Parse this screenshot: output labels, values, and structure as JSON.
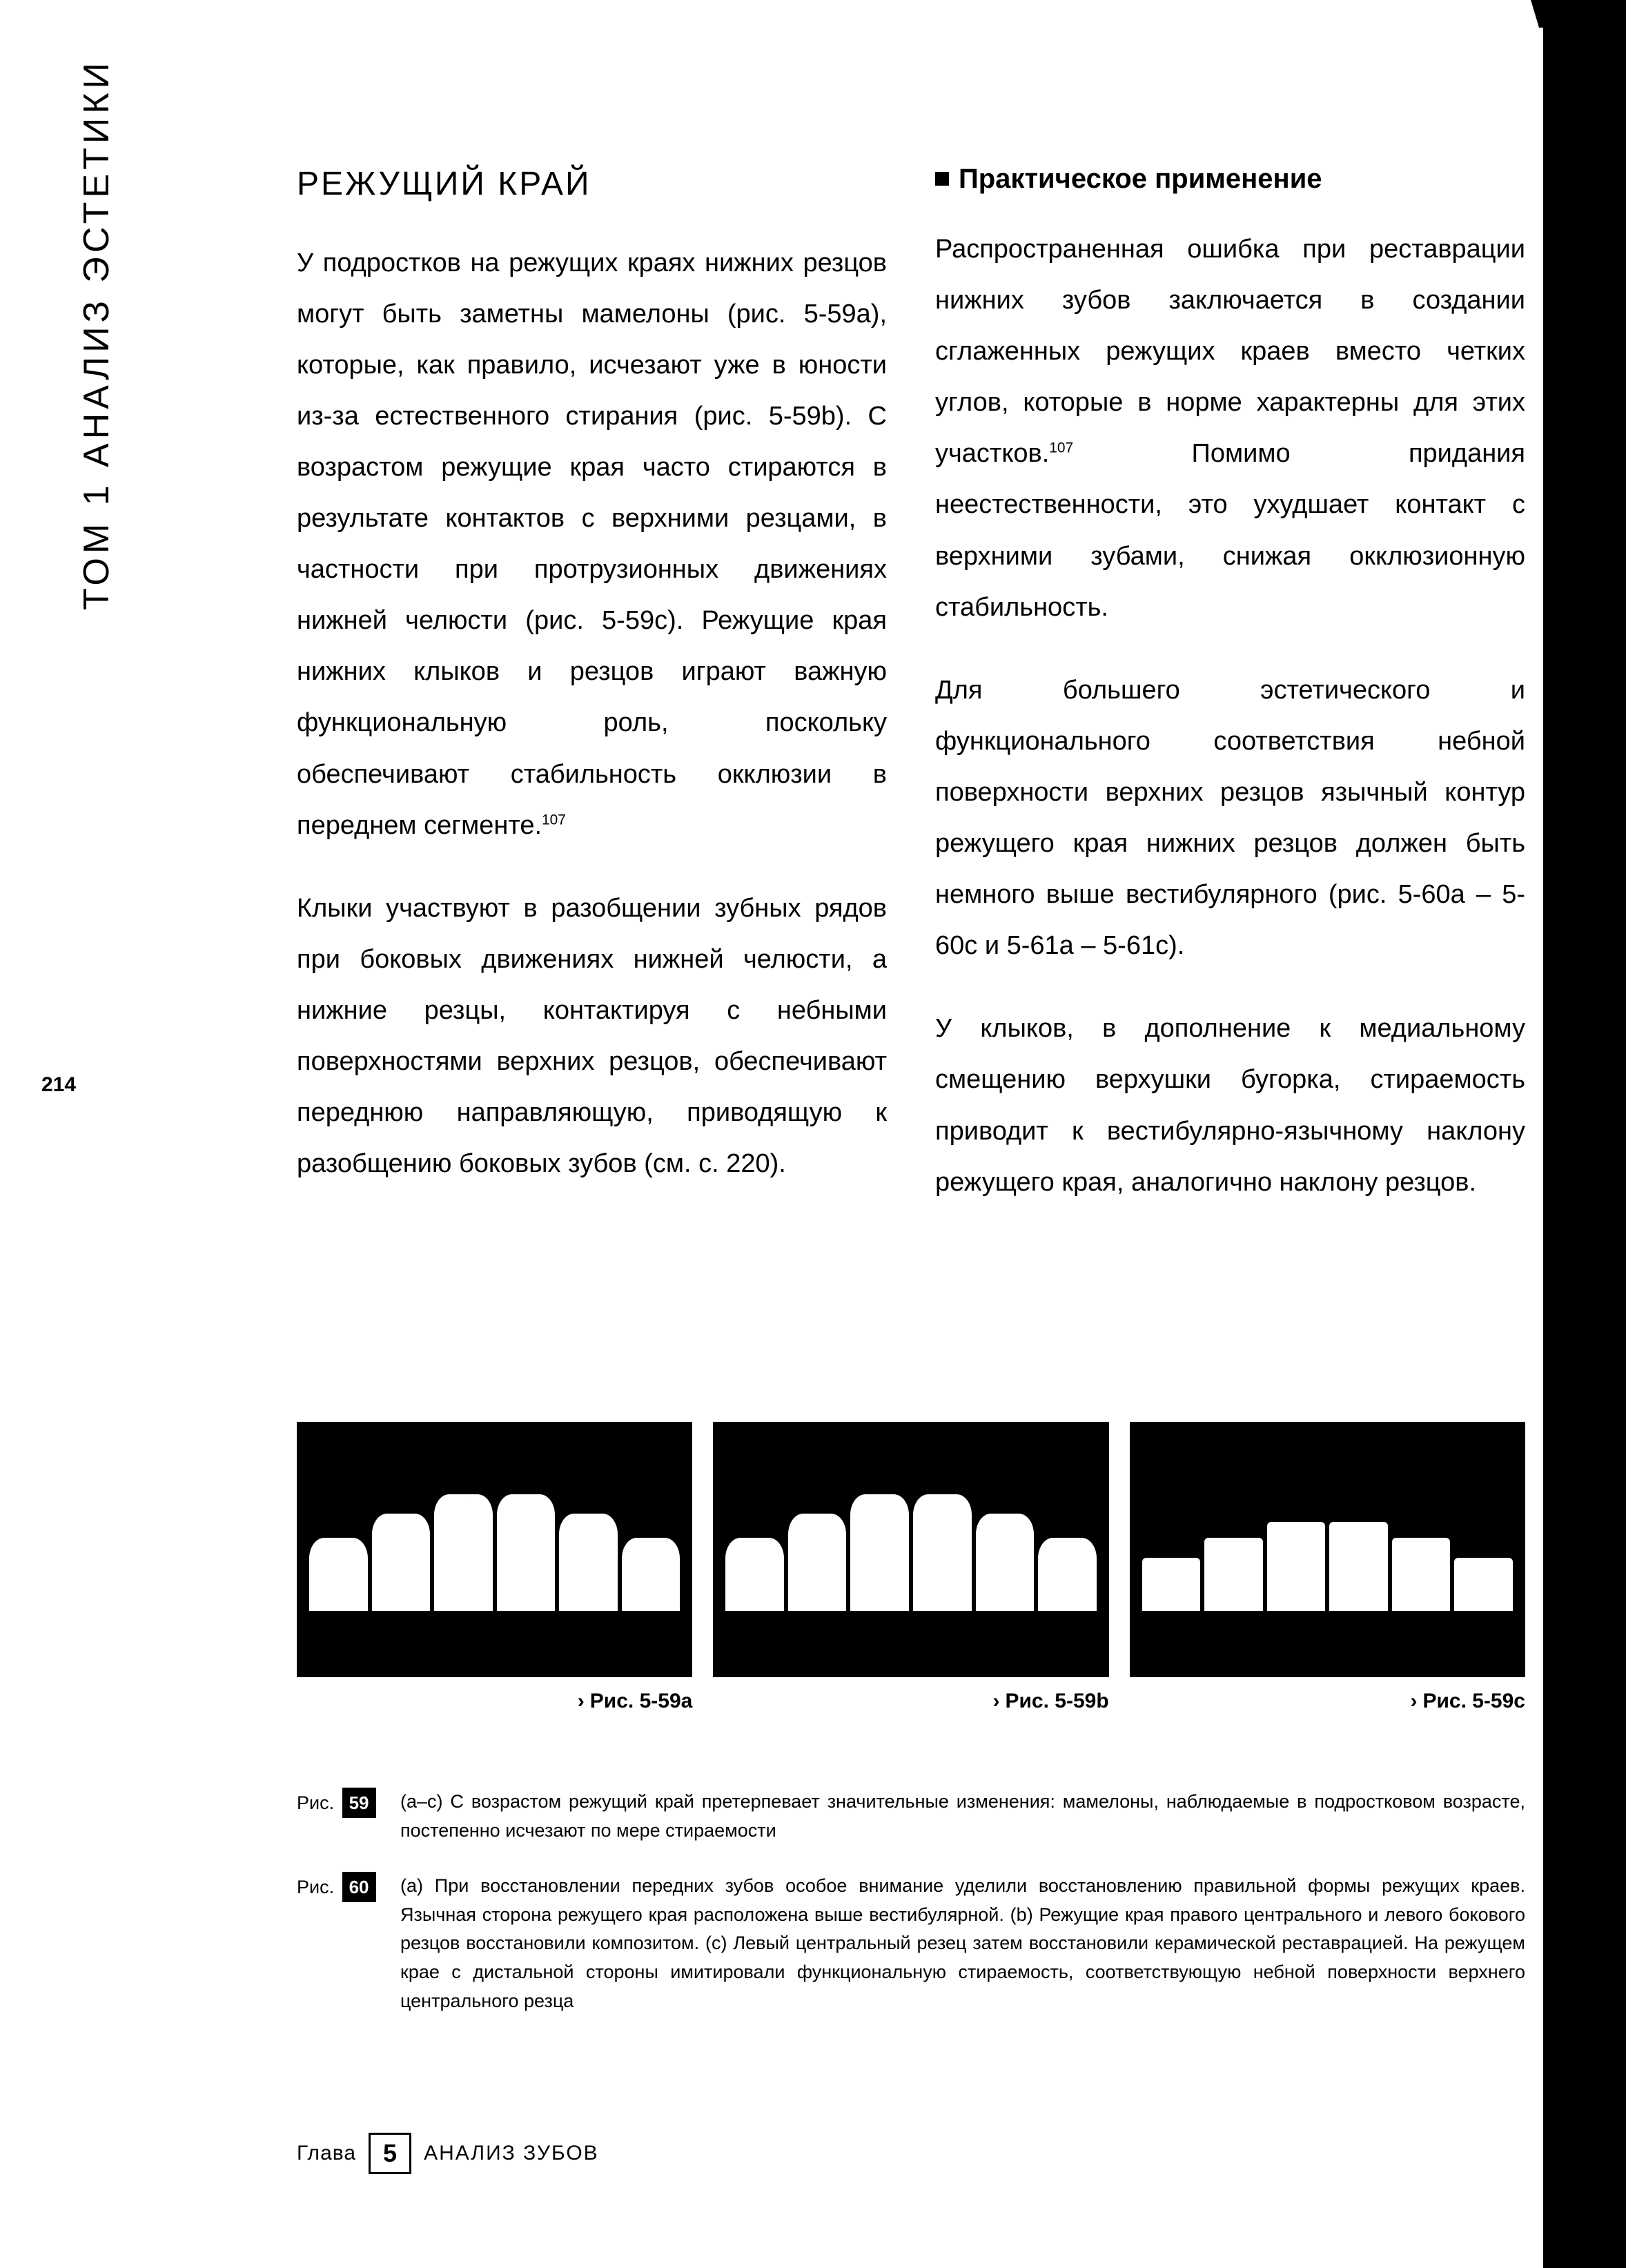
{
  "side_label": "ТОМ 1  АНАЛИЗ ЭСТЕТИКИ",
  "page_number": "214",
  "heading": "РЕЖУЩИЙ КРАЙ",
  "left_paragraphs": [
    "У подростков на режущих краях нижних резцов могут быть заметны мамелоны (рис. 5-59a), которые, как правило, исчезают уже в юности из-за естественного стирания (рис. 5-59b). С возрастом режущие края часто стираются в результате контактов с верхними резцами, в частности при протрузионных движениях нижней челюсти (рис. 5-59c). Режущие края нижних клыков и резцов играют важную функциональную роль, поскольку обеспечивают стабильность окклюзии в переднем сегменте.",
    "Клыки участвуют в разобщении зубных рядов при боковых движениях нижней челюсти, а нижние резцы, контактируя с небными поверхностями верхних резцов, обеспечивают переднюю направляющую, приводящую к разобщению боковых зубов (см. с. 220)."
  ],
  "left_sup_ref": "107",
  "subheading": "Практическое применение",
  "right_paragraphs": [
    "Распространенная ошибка при реставрации нижних зубов заключается в создании сглаженных режущих краев вместо четких углов, которые в норме характерны для этих участков. Помимо придания неестественности, это ухудшает контакт с верхними зубами, снижая окклюзионную стабильность.",
    "Для большего эстетического и функционального соответствия небной поверхности верхних резцов язычный контур режущего края нижних резцов должен быть немного выше вестибулярного (рис. 5-60a – 5-60c и 5-61a – 5-61c).",
    "У клыков, в дополнение к медиальному смещению верхушки бугорка, стираемость приводит к вестибулярно-язычному наклону режущего края, аналогично наклону резцов."
  ],
  "right_sup_ref": "107",
  "figures": [
    {
      "caption": "Рис. 5-59a",
      "variant": "mamelon"
    },
    {
      "caption": "Рис. 5-59b",
      "variant": "normal"
    },
    {
      "caption": "Рис. 5-59c",
      "variant": "worn"
    }
  ],
  "caption_blocks": [
    {
      "label_prefix": "Рис.",
      "label_num": "59",
      "text": "(a–c) С возрастом режущий край претерпевает значительные изменения: мамелоны, наблюдаемые в подростковом возрасте, постепенно исчезают по мере стираемости"
    },
    {
      "label_prefix": "Рис.",
      "label_num": "60",
      "text": "(a) При восстановлении передних зубов особое внимание уделили восстановлению правильной формы режущих краев. Язычная сторона режущего края расположена выше вестибулярной. (b) Режущие края правого центрального и левого бокового резцов восстановили композитом. (c) Левый центральный резец затем восстановили керамической реставрацией. На режущем крае с дистальной стороны имитировали функциональную стираемость, соответствующую небной поверхности верхнего центрального резца"
    }
  ],
  "footer": {
    "chapter_word": "Глава",
    "chapter_num": "5",
    "chapter_title": "АНАЛИЗ ЗУБОВ"
  },
  "colors": {
    "text": "#000000",
    "background": "#ffffff",
    "figure_bg": "#000000",
    "tooth": "#ffffff"
  }
}
